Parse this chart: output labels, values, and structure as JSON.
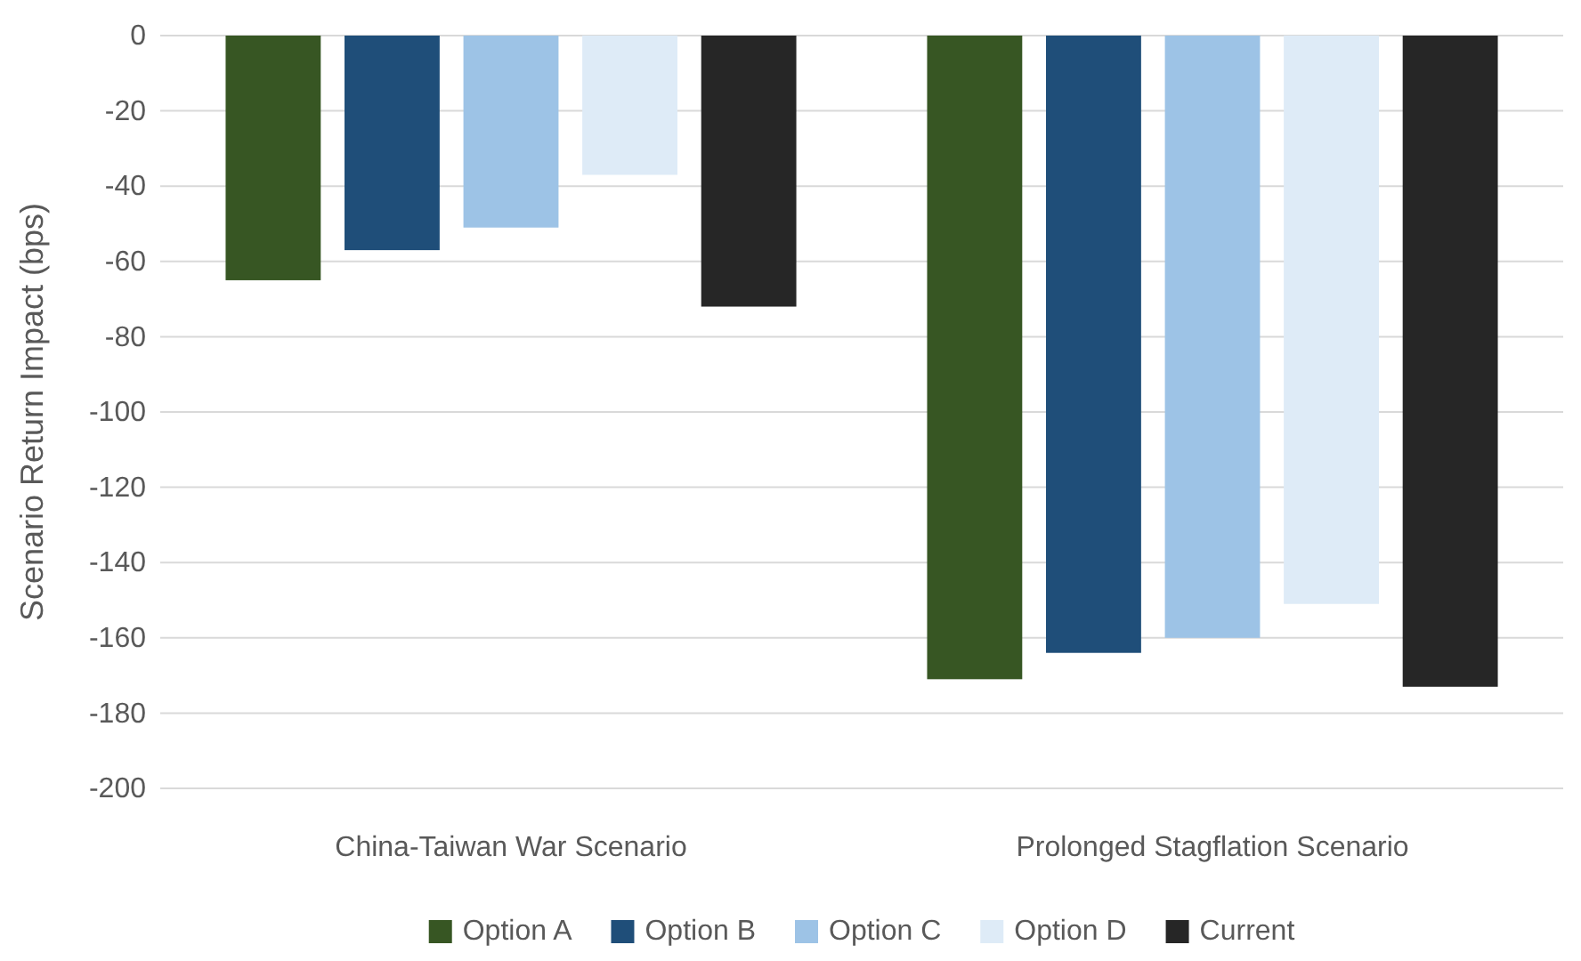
{
  "chart_data": {
    "type": "bar",
    "ylabel": "Scenario Return Impact (bps)",
    "categories": [
      "China-Taiwan War Scenario",
      "Prolonged Stagflation Scenario"
    ],
    "series": [
      {
        "name": "Option A",
        "color": "#375623",
        "values": [
          -65,
          -171
        ]
      },
      {
        "name": "Option B",
        "color": "#1f4e79",
        "values": [
          -57,
          -164
        ]
      },
      {
        "name": "Option C",
        "color": "#9dc3e6",
        "values": [
          -51,
          -160
        ]
      },
      {
        "name": "Option D",
        "color": "#deebf7",
        "values": [
          -37,
          -151
        ]
      },
      {
        "name": "Current",
        "color": "#262626",
        "values": [
          -72,
          -173
        ]
      }
    ],
    "ylim": [
      -200,
      0
    ],
    "yticks": [
      -200,
      -180,
      -160,
      -140,
      -120,
      -100,
      -80,
      -60,
      -40,
      -20,
      0
    ],
    "grid": "y",
    "legend": "bottom"
  }
}
